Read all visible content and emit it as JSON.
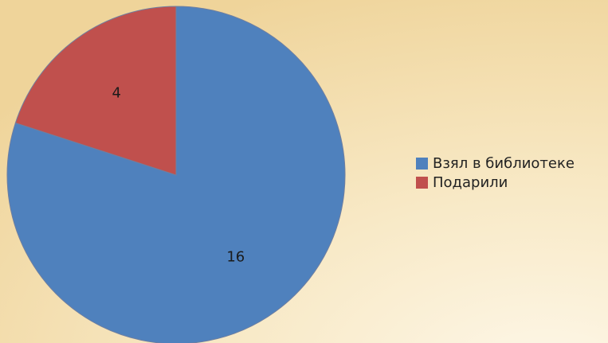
{
  "chart_data": {
    "type": "pie",
    "categories": [
      "Взял в библиотеке",
      "Подарили"
    ],
    "values": [
      16,
      4
    ],
    "colors": [
      "#4f81bd",
      "#c0504d"
    ],
    "data_labels": [
      "16",
      "4"
    ],
    "start": "12 o'clock",
    "direction": "clockwise",
    "legend_position": "right",
    "title": ""
  }
}
